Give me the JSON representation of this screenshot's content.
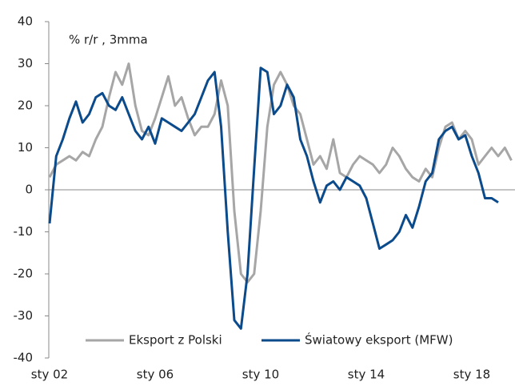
{
  "chart_data": {
    "type": "line",
    "annotation": "% r/r , 3mma",
    "categories": [
      "sty 02",
      null,
      null,
      null,
      null,
      null,
      null,
      null,
      null,
      null,
      null,
      null,
      null,
      null,
      null,
      null,
      "sty 06",
      null,
      null,
      null,
      null,
      null,
      null,
      null,
      null,
      null,
      null,
      null,
      null,
      null,
      null,
      null,
      "sty 10",
      null,
      null,
      null,
      null,
      null,
      null,
      null,
      null,
      null,
      null,
      null,
      null,
      null,
      null,
      null,
      "sty 14",
      null,
      null,
      null,
      null,
      null,
      null,
      null,
      null,
      null,
      null,
      null,
      null,
      null,
      null,
      null,
      "sty 18",
      null,
      null,
      null,
      null,
      null,
      null
    ],
    "series": [
      {
        "name": "Eksport z Polski",
        "color": "#a6a6a6",
        "values": [
          3,
          6,
          7,
          8,
          7,
          9,
          8,
          12,
          15,
          22,
          28,
          25,
          30,
          20,
          14,
          13,
          17,
          22,
          27,
          20,
          22,
          17,
          13,
          15,
          15,
          18,
          26,
          20,
          -5,
          -20,
          -22,
          -20,
          -5,
          15,
          25,
          28,
          25,
          20,
          18,
          12,
          6,
          8,
          5,
          12,
          4,
          3,
          6,
          8,
          7,
          6,
          4,
          6,
          10,
          8,
          5,
          3,
          2,
          5,
          3,
          10,
          15,
          16,
          12,
          14,
          12,
          6,
          8,
          10,
          8,
          10,
          7
        ]
      },
      {
        "name": "Światowy eksport (MFW)",
        "color": "#0b4a8b",
        "values": [
          -8,
          8,
          12,
          17,
          21,
          16,
          18,
          22,
          23,
          20,
          19,
          22,
          18,
          14,
          12,
          15,
          11,
          17,
          16,
          15,
          14,
          16,
          18,
          22,
          26,
          28,
          15,
          -10,
          -31,
          -33,
          -20,
          5,
          29,
          28,
          18,
          20,
          25,
          22,
          12,
          8,
          2,
          -3,
          1,
          2,
          0,
          3,
          2,
          1,
          -2,
          -8,
          -14,
          -13,
          -12,
          -10,
          -6,
          -9,
          -4,
          2,
          4,
          12,
          14,
          15,
          12,
          13,
          8,
          4,
          -2,
          -2,
          -3,
          null,
          null
        ]
      }
    ],
    "ylim": [
      -40,
      40
    ],
    "yticks": [
      -40,
      -30,
      -20,
      -10,
      0,
      10,
      20,
      30,
      40
    ]
  }
}
